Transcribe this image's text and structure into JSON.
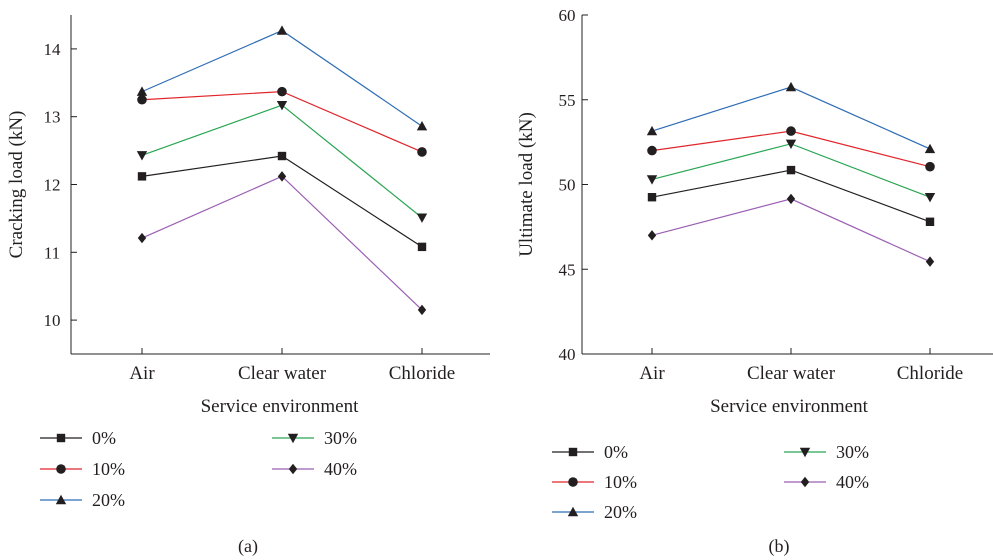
{
  "chart_data": [
    {
      "type": "line",
      "panel_label": "(a)",
      "xlabel": "Service environment",
      "ylabel": "Cracking load (kN)",
      "categories": [
        "Air",
        "Clear water",
        "Chloride"
      ],
      "ylim": [
        9.5,
        14.5
      ],
      "yticks": [
        10,
        11,
        12,
        13,
        14
      ],
      "grid": false,
      "legend_position": "bottom",
      "series": [
        {
          "name": "0%",
          "color": "#231f20",
          "marker": "square",
          "values": [
            12.12,
            12.42,
            11.08
          ]
        },
        {
          "name": "10%",
          "color": "#e0262b",
          "marker": "circle",
          "values": [
            13.25,
            13.37,
            12.48
          ]
        },
        {
          "name": "20%",
          "color": "#2e6db5",
          "marker": "triangle-up",
          "values": [
            13.37,
            14.27,
            12.86
          ]
        },
        {
          "name": "30%",
          "color": "#2aa553",
          "marker": "triangle-down",
          "values": [
            12.43,
            13.17,
            11.51
          ]
        },
        {
          "name": "40%",
          "color": "#9b5fb3",
          "marker": "diamond",
          "values": [
            11.21,
            12.12,
            10.15
          ]
        }
      ]
    },
    {
      "type": "line",
      "panel_label": "(b)",
      "xlabel": "Service environment",
      "ylabel": "Ultimate load (kN)",
      "categories": [
        "Air",
        "Clear water",
        "Chloride"
      ],
      "ylim": [
        40,
        60
      ],
      "yticks": [
        40,
        45,
        50,
        55,
        60
      ],
      "grid": false,
      "legend_position": "bottom",
      "series": [
        {
          "name": "0%",
          "color": "#231f20",
          "marker": "square",
          "values": [
            49.25,
            50.85,
            47.8
          ]
        },
        {
          "name": "10%",
          "color": "#e0262b",
          "marker": "circle",
          "values": [
            52.0,
            53.15,
            51.05
          ]
        },
        {
          "name": "20%",
          "color": "#2e6db5",
          "marker": "triangle-up",
          "values": [
            53.15,
            55.75,
            52.1
          ]
        },
        {
          "name": "30%",
          "color": "#2aa553",
          "marker": "triangle-down",
          "values": [
            50.3,
            52.4,
            49.25
          ]
        },
        {
          "name": "40%",
          "color": "#9b5fb3",
          "marker": "diamond",
          "values": [
            47.0,
            49.15,
            45.45
          ]
        }
      ]
    }
  ]
}
